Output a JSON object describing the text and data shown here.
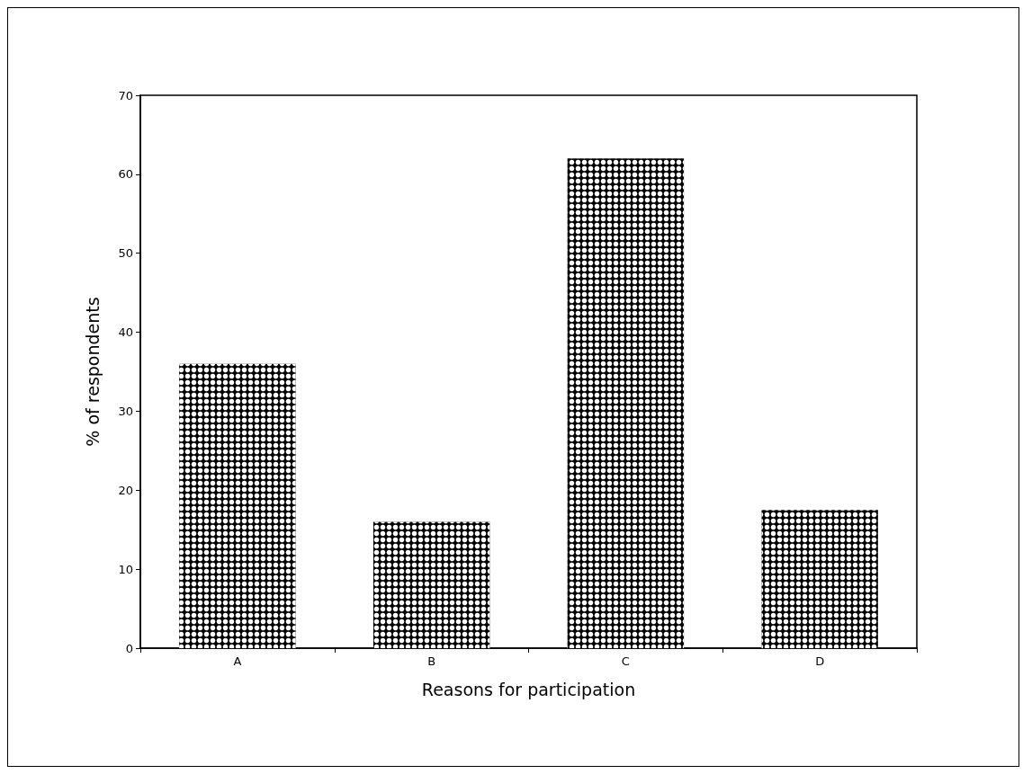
{
  "chart_data": {
    "type": "bar",
    "xlabel": "Reasons for participation",
    "ylabel": "% of respondents",
    "categories": [
      "A",
      "B",
      "C",
      "D"
    ],
    "values": [
      36,
      16,
      62,
      17.5
    ],
    "color": "#000000",
    "ylim": [
      0,
      70
    ],
    "yticks": [
      0,
      10,
      20,
      30,
      40,
      50,
      60,
      70
    ],
    "grid": false
  }
}
